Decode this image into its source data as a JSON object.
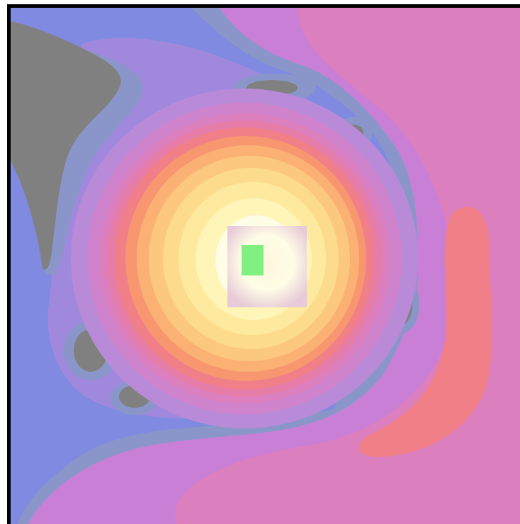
{
  "colors": {
    "background": "#ffffff",
    "frame": "#000000",
    "field_base": "#c97fd6",
    "void_gray": "#808080",
    "ring_slate": "#8a96c9",
    "ring_blue": "#7f8ae0",
    "ring_violet": "#a089dc",
    "ring_purple": "#b98ad8",
    "ring_magenta": "#cf83cc",
    "ring_pink": "#db7fbe",
    "ring_rose": "#e67ca8",
    "ring_salmon": "#f07f88",
    "ring_coral": "#f7966f",
    "ring_orange": "#fbb074",
    "ring_peach": "#fcc77f",
    "ring_gold": "#fddb8c",
    "ring_light_gold": "#feea9e",
    "ring_pale": "#fff5b8",
    "core": "#fffde6",
    "marker": "#80f080",
    "probe_center": "#fdf6dc",
    "probe_edge": "#e7cbd8"
  },
  "field": {
    "description_icon": "energy-field-heatmap",
    "marker_icon": "position-marker"
  }
}
